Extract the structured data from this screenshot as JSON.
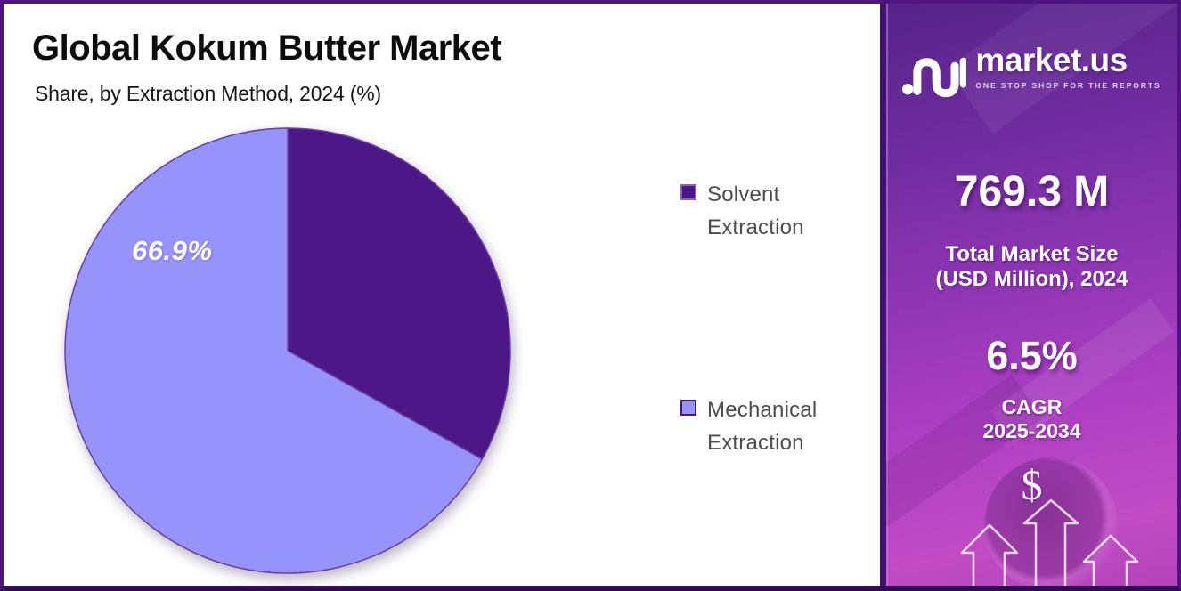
{
  "header": {
    "title": "Global Kokum Butter Market",
    "subtitle": "Share, by Extraction Method, 2024 (%)"
  },
  "chart_data": {
    "type": "pie",
    "title": "Global Kokum Butter Market Share, by Extraction Method, 2024 (%)",
    "categories": [
      "Solvent Extraction",
      "Mechanical Extraction"
    ],
    "values": [
      33.1,
      66.9
    ],
    "unit": "%",
    "colors": [
      "#4c1787",
      "#9693fa"
    ],
    "swatch_border_colors": [
      "#8a5fc0",
      "#4c1787"
    ],
    "stroke_color": "#6a3fa0",
    "slice_labels": [
      "",
      "66.9%"
    ],
    "start_angle_deg": 0,
    "direction": "clockwise",
    "legend_position": "right"
  },
  "sidebar": {
    "logo": {
      "brand": "market.us",
      "tagline": "ONE STOP SHOP FOR THE REPORTS"
    },
    "market_size_value": "769.3 M",
    "market_size_label_line1": "Total Market Size",
    "market_size_label_line2": "(USD Million), 2024",
    "cagr_value": "6.5%",
    "cagr_label": "CAGR",
    "cagr_period": "2025-2034",
    "dollar_symbol": "$",
    "colors": {
      "gradient_top": "#552487",
      "gradient_bottom": "#b343ba",
      "frame_border": "#4e1580"
    }
  }
}
